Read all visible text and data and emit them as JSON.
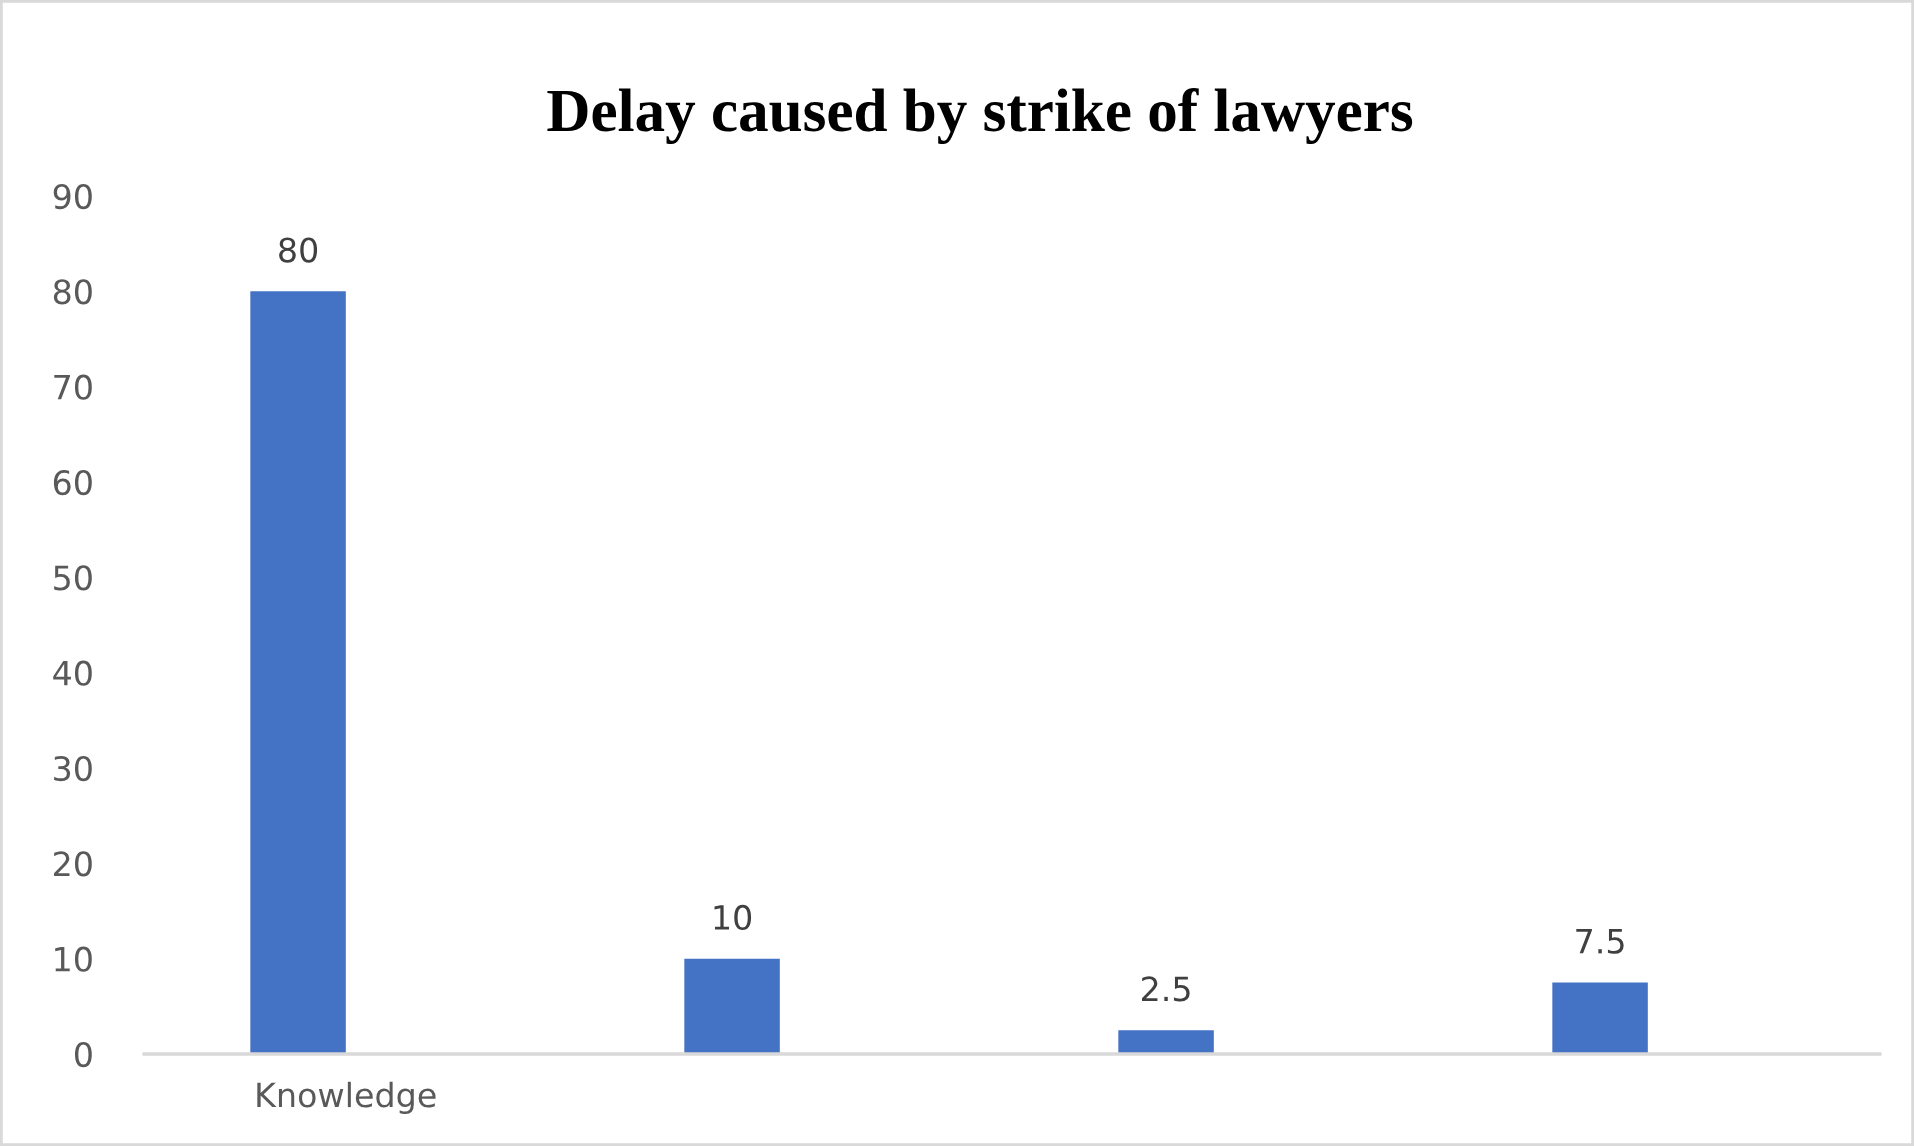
{
  "chart_data": {
    "type": "bar",
    "title": "Delay caused by strike of lawyers",
    "categories": [
      "Knowledge",
      null,
      null,
      null
    ],
    "values": [
      80,
      10,
      2.5,
      7.5
    ],
    "color": "#4472c4",
    "ylim": [
      0,
      90
    ],
    "yticks": [
      0,
      10,
      20,
      30,
      40,
      50,
      60,
      70,
      80,
      90
    ],
    "grid": false,
    "data_labels": true
  }
}
